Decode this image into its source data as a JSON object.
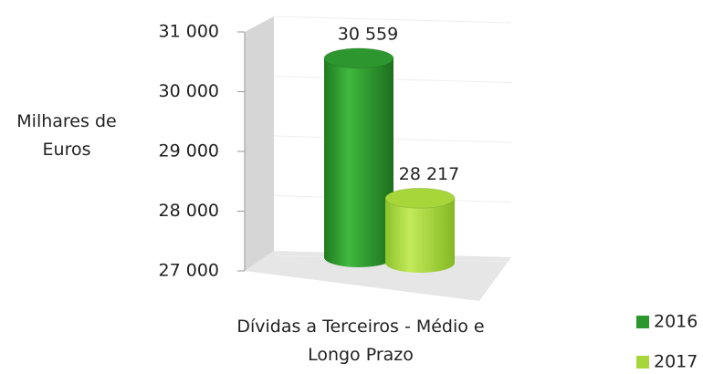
{
  "chart_data": {
    "type": "bar3d",
    "ylabel": "Milhares de Euros",
    "categories": [
      "Dívidas a Terceiros - Médio e Longo Prazo"
    ],
    "series": [
      {
        "name": "2016",
        "color": "#2e962e",
        "values": [
          30559
        ],
        "value_labels": [
          "30 559"
        ]
      },
      {
        "name": "2017",
        "color": "#a6d63a",
        "values": [
          28217
        ],
        "value_labels": [
          "28 217"
        ]
      }
    ],
    "ylim": [
      27000,
      31000
    ],
    "yticks": [
      {
        "value": 27000,
        "label": "27 000"
      },
      {
        "value": 28000,
        "label": "28 000"
      },
      {
        "value": 29000,
        "label": "29 000"
      },
      {
        "value": 30000,
        "label": "30 000"
      },
      {
        "value": 31000,
        "label": "31 000"
      }
    ],
    "grid": true,
    "legend": "bottom-right"
  }
}
